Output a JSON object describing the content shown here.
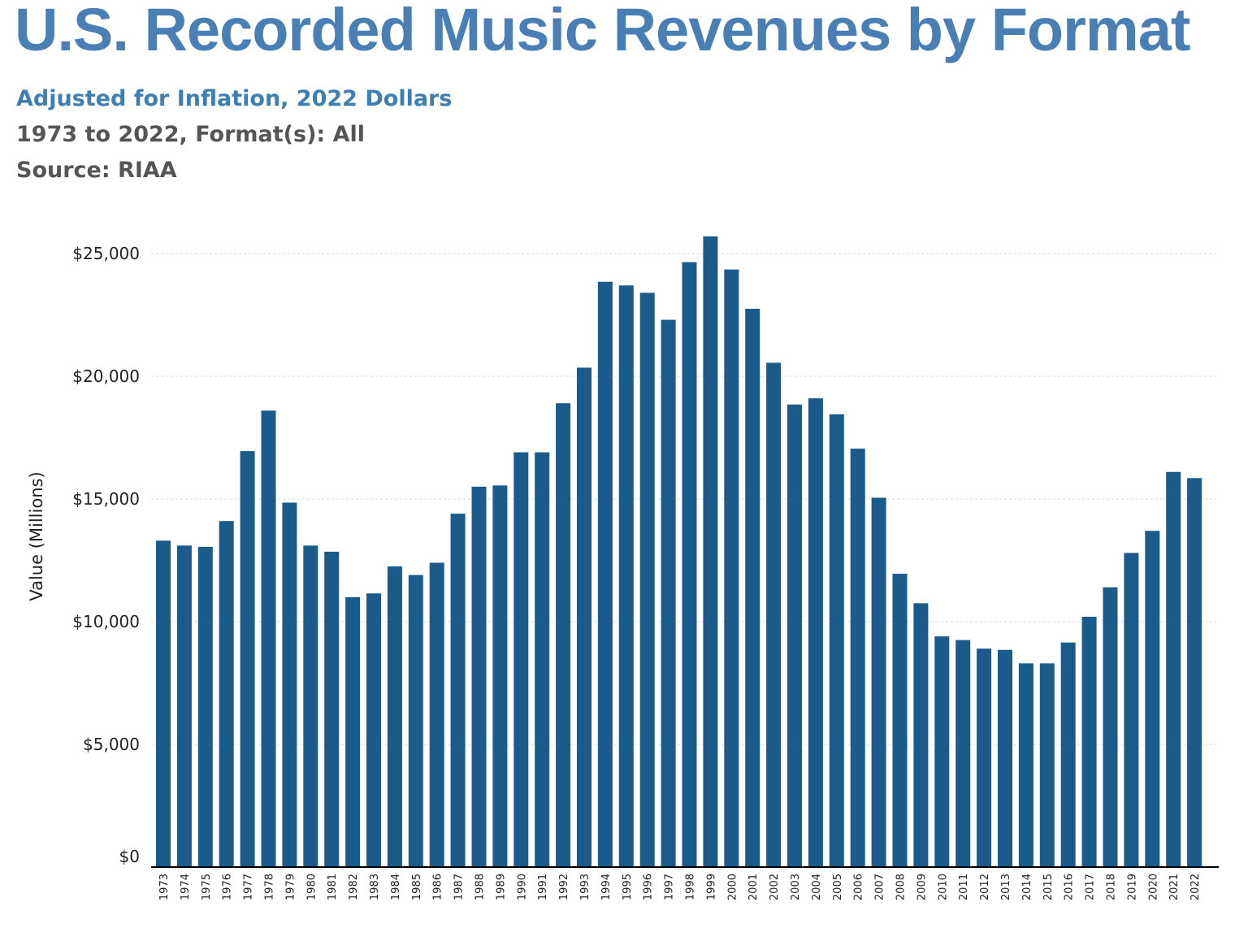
{
  "header": {
    "title": "U.S. Recorded Music Revenues by Format",
    "subtitle1": "Adjusted for Inflation, 2022 Dollars",
    "subtitle2": "1973 to 2022, Format(s): All",
    "subtitle3": "Source: RIAA"
  },
  "colors": {
    "title": "#4a7fb5",
    "subtitle1": "#3f7eb3",
    "subtitle_gray": "#555555",
    "bar": "#1a5b8c",
    "grid": "#d9d9d9",
    "axis": "#000000"
  },
  "chart_data": {
    "type": "bar",
    "ylabel": "Value (Millions)",
    "ylim": [
      0,
      25000
    ],
    "yticks": [
      0,
      5000,
      10000,
      15000,
      20000,
      25000
    ],
    "ytick_labels": [
      "$0",
      "$5,000",
      "$10,000",
      "$15,000",
      "$20,000",
      "$25,000"
    ],
    "grid": true,
    "categories": [
      "1973",
      "1974",
      "1975",
      "1976",
      "1977",
      "1978",
      "1979",
      "1980",
      "1981",
      "1982",
      "1983",
      "1984",
      "1985",
      "1986",
      "1987",
      "1988",
      "1989",
      "1990",
      "1991",
      "1992",
      "1993",
      "1994",
      "1995",
      "1996",
      "1997",
      "1998",
      "1999",
      "2000",
      "2001",
      "2002",
      "2003",
      "2004",
      "2005",
      "2006",
      "2007",
      "2008",
      "2009",
      "2010",
      "2011",
      "2012",
      "2013",
      "2014",
      "2015",
      "2016",
      "2017",
      "2018",
      "2019",
      "2020",
      "2021",
      "2022"
    ],
    "values": [
      13300,
      13100,
      13050,
      14100,
      16950,
      18600,
      14850,
      13100,
      12850,
      11000,
      11150,
      12250,
      11900,
      12400,
      14400,
      15500,
      15550,
      16900,
      16900,
      18900,
      20350,
      23850,
      23700,
      23400,
      22300,
      24650,
      25700,
      24350,
      22750,
      20550,
      18850,
      19100,
      18450,
      17050,
      15050,
      11950,
      10750,
      9400,
      9250,
      8900,
      8850,
      8300,
      8300,
      9150,
      10200,
      11400,
      12800,
      13700,
      16100,
      15850
    ]
  }
}
